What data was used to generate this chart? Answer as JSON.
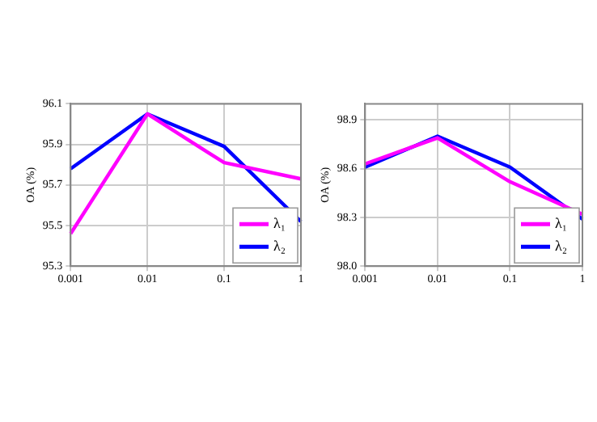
{
  "chart_data": [
    {
      "type": "line",
      "ylabel": "OA (%)",
      "categories": [
        "0.001",
        "0.01",
        "0.1",
        "1"
      ],
      "series": [
        {
          "name": "λ₁",
          "color": "#ff00ff",
          "values": [
            95.46,
            96.05,
            95.81,
            95.73
          ]
        },
        {
          "name": "λ₂",
          "color": "#0000ff",
          "values": [
            95.78,
            96.05,
            95.89,
            95.52
          ]
        }
      ],
      "ylim": [
        95.3,
        96.1
      ],
      "yticks": [
        95.3,
        95.5,
        95.7,
        95.9,
        96.1
      ],
      "grid": true,
      "legend": "bottom right",
      "line_style": "solid",
      "marker": "none"
    },
    {
      "type": "line",
      "ylabel": "OA (%)",
      "categories": [
        "0.001",
        "0.01",
        "0.1",
        "1"
      ],
      "series": [
        {
          "name": "λ₁",
          "color": "#ff00ff",
          "values": [
            98.63,
            98.79,
            98.52,
            98.32
          ]
        },
        {
          "name": "λ₂",
          "color": "#0000ff",
          "values": [
            98.61,
            98.8,
            98.61,
            98.29
          ]
        }
      ],
      "ylim": [
        98,
        99
      ],
      "yticks": [
        {
          "value": 98,
          "label": "98.0"
        },
        98.3,
        98.6,
        98.9
      ],
      "grid": true,
      "legend": "bottom right",
      "line_style": "solid",
      "marker": "none"
    }
  ]
}
